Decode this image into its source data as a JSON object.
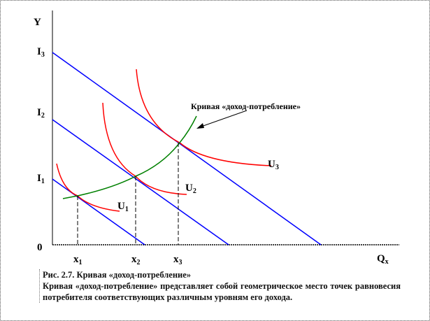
{
  "diagram": {
    "y_axis_label": "Y",
    "x_axis_label": "Q",
    "x_axis_label_sub": "x",
    "origin_label": "0",
    "income_levels": [
      {
        "label": "I",
        "sub": "1"
      },
      {
        "label": "I",
        "sub": "2"
      },
      {
        "label": "I",
        "sub": "3"
      }
    ],
    "quantities": [
      {
        "label": "x",
        "sub": "1"
      },
      {
        "label": "x",
        "sub": "2"
      },
      {
        "label": "x",
        "sub": "3"
      }
    ],
    "indifference_curves": [
      {
        "label": "U",
        "sub": "1"
      },
      {
        "label": "U",
        "sub": "2"
      },
      {
        "label": "U",
        "sub": "3"
      }
    ],
    "curve_annotation": "Кривая «доход-потребление»",
    "colors": {
      "budget": "#0000ff",
      "indifference": "#ff0000",
      "icc": "#008000"
    }
  },
  "caption": {
    "title": "Рис. 2.7. Кривая «доход-потребление»",
    "text": "Кривая «доход-потребление» представляет собой геометрическое место точек равновесия потребителя соответствующих различным уровням его дохода."
  }
}
